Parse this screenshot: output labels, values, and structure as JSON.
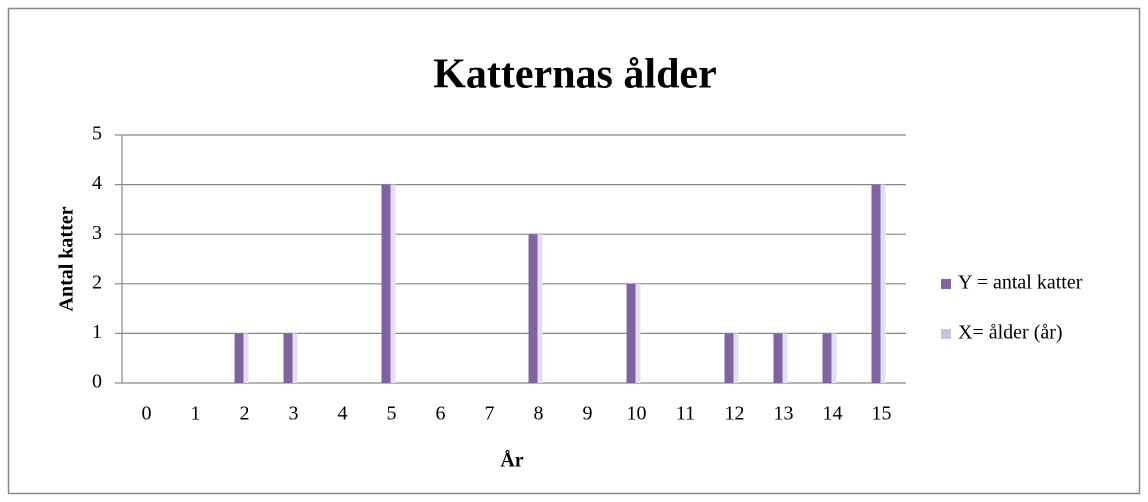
{
  "chart_data": {
    "type": "bar",
    "title": "Katternas ålder",
    "x_label": "År",
    "y_label": "Antal katter",
    "categories": [
      "0",
      "1",
      "2",
      "3",
      "4",
      "5",
      "6",
      "7",
      "8",
      "9",
      "10",
      "11",
      "12",
      "13",
      "14",
      "15"
    ],
    "series": [
      {
        "name": "Y = antal katter",
        "color": "#8064a2",
        "values": [
          0,
          0,
          1,
          1,
          0,
          4,
          0,
          0,
          3,
          0,
          2,
          0,
          1,
          1,
          1,
          4
        ]
      },
      {
        "name": "X= ålder (år)",
        "color": "#ccc1e0",
        "values": [
          null,
          null,
          null,
          null,
          null,
          null,
          null,
          null,
          null,
          null,
          null,
          null,
          null,
          null,
          null,
          null
        ]
      }
    ],
    "ylim": [
      0,
      5
    ],
    "yticks": [
      0,
      1,
      2,
      3,
      4,
      5
    ],
    "grid": true,
    "legend": "right"
  }
}
